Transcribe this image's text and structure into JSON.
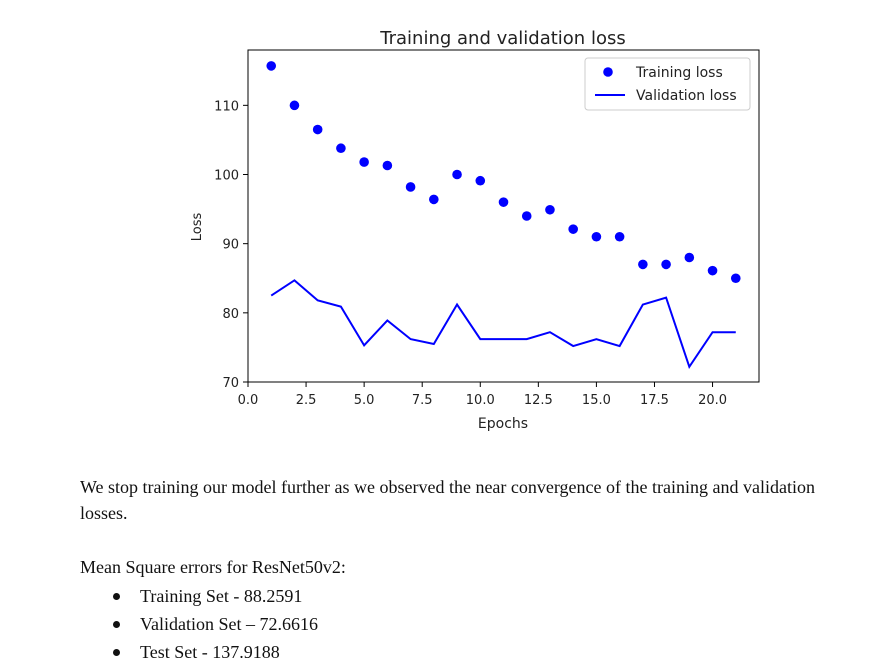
{
  "chart_data": {
    "type": "scatter",
    "title": "Training and validation loss",
    "xlabel": "Epochs",
    "ylabel": "Loss",
    "xlim": [
      0,
      22
    ],
    "ylim": [
      70,
      118
    ],
    "xticks": [
      0.0,
      2.5,
      5.0,
      7.5,
      10.0,
      12.5,
      15.0,
      17.5,
      20.0
    ],
    "xtick_labels": [
      "0.0",
      "2.5",
      "5.0",
      "7.5",
      "10.0",
      "12.5",
      "15.0",
      "17.5",
      "20.0"
    ],
    "yticks": [
      70,
      80,
      90,
      100,
      110
    ],
    "ytick_labels": [
      "70",
      "80",
      "90",
      "100",
      "110"
    ],
    "legend_position": "top-right",
    "grid": false,
    "series": [
      {
        "name": "Training loss",
        "style": "markers",
        "color": "#0000ff",
        "x": [
          1,
          2,
          3,
          4,
          5,
          6,
          7,
          8,
          9,
          10,
          11,
          12,
          13,
          14,
          15,
          16,
          17,
          18,
          19,
          20,
          21
        ],
        "y": [
          115.7,
          110.0,
          106.5,
          103.8,
          101.8,
          101.3,
          98.2,
          96.4,
          100.0,
          99.1,
          96.0,
          94.0,
          94.9,
          92.1,
          91.0,
          91.0,
          87.0,
          87.0,
          88.0,
          86.1,
          85.0
        ]
      },
      {
        "name": "Validation loss",
        "style": "line",
        "color": "#0000ff",
        "x": [
          1,
          2,
          3,
          4,
          5,
          6,
          7,
          8,
          9,
          10,
          11,
          12,
          13,
          14,
          15,
          16,
          17,
          18,
          19,
          20,
          21
        ],
        "y": [
          82.5,
          84.7,
          81.8,
          80.9,
          75.3,
          78.9,
          76.2,
          75.5,
          81.2,
          76.2,
          76.2,
          76.2,
          77.2,
          75.2,
          76.2,
          75.2,
          81.2,
          82.2,
          72.2,
          77.2,
          77.2
        ]
      }
    ]
  },
  "document": {
    "paragraph": "We stop training our model further as we observed the near convergence of the training and validation losses.",
    "mse_title": "Mean Square errors for ResNet50v2:",
    "bullets": [
      "Training Set - 88.2591",
      "Validation Set – 72.6616",
      "Test Set - 137.9188"
    ]
  }
}
